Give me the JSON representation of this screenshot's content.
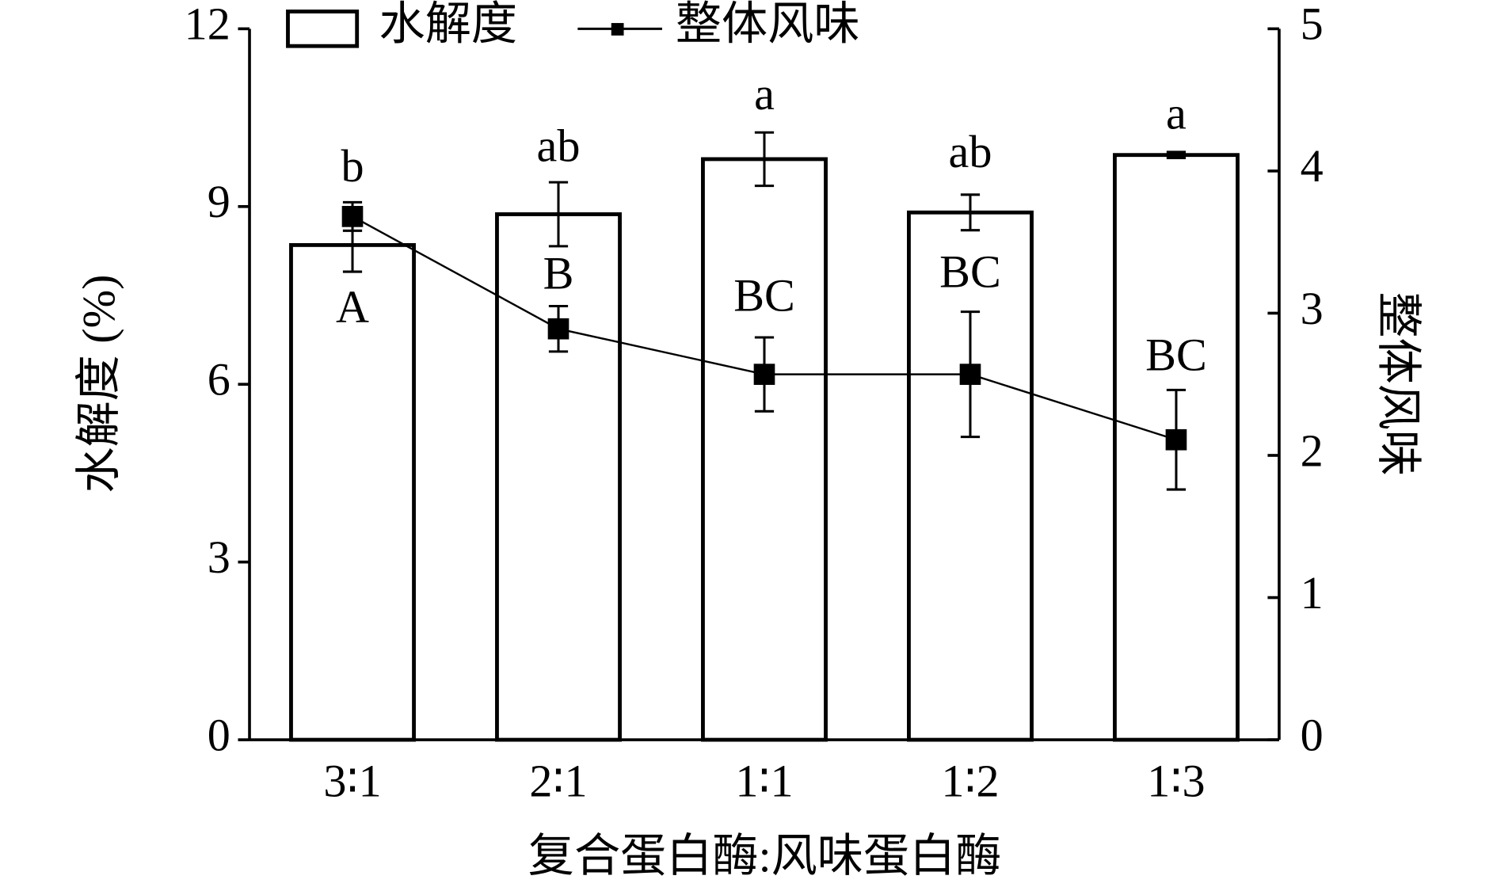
{
  "chart_data": {
    "type": "bar",
    "categories": [
      "3∶1",
      "2∶1",
      "1∶1",
      "1∶2",
      "1∶3"
    ],
    "x_label": "复合蛋白酶:风味蛋白酶",
    "y_label": "水解度 (%)",
    "y2_label": "整体风味",
    "ylim": [
      0,
      12
    ],
    "yticks": [
      0,
      3,
      6,
      9,
      12
    ],
    "y2lim": [
      0,
      5
    ],
    "y2ticks": [
      0,
      1,
      2,
      3,
      4,
      5
    ],
    "legend": "upper left",
    "series": [
      {
        "name": "水解度",
        "type": "bar",
        "color": "#ffffff",
        "edgecolor": "#000000",
        "values": [
          8.35,
          8.87,
          9.8,
          8.9,
          9.87
        ],
        "errors": [
          0.45,
          0.54,
          0.45,
          0.3,
          0.05
        ],
        "labels": [
          "b",
          "ab",
          "a",
          "ab",
          "a"
        ]
      },
      {
        "name": "整体风味",
        "type": "line",
        "axis": "y2",
        "color": "#000000",
        "values": [
          3.68,
          2.89,
          2.57,
          2.57,
          2.11
        ],
        "errors": [
          0.1,
          0.16,
          0.26,
          0.44,
          0.35
        ],
        "labels": [
          "A",
          "B",
          "BC",
          "BC",
          "BC"
        ]
      }
    ]
  }
}
